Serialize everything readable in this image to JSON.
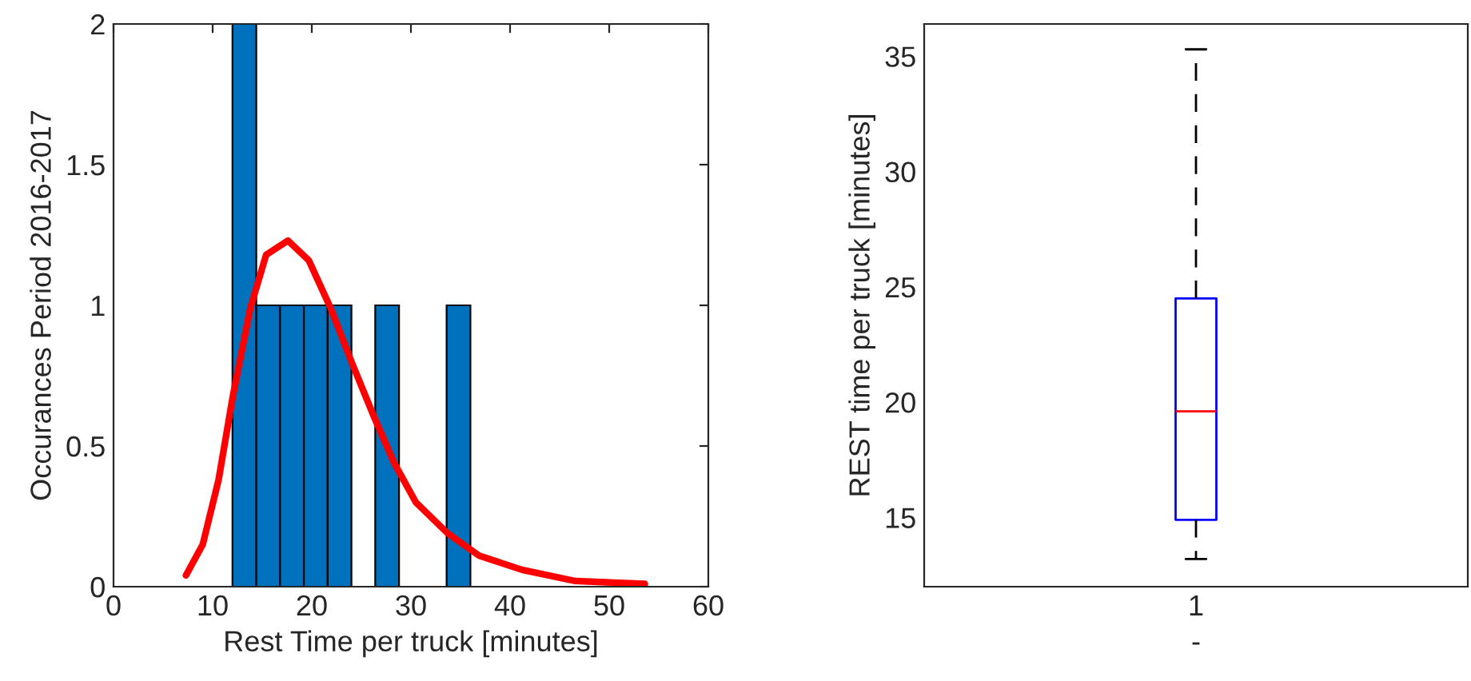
{
  "chart_data": [
    {
      "type": "histogram",
      "xlabel": "Rest Time per truck [minutes]",
      "ylabel": "Occurances Period 2016-2017",
      "bins": [
        12,
        14.4,
        16.8,
        19.2,
        21.6,
        24,
        26.4,
        28.8,
        31.2,
        33.6,
        36
      ],
      "values": [
        2,
        1,
        1,
        1,
        1,
        0,
        1,
        0,
        0,
        1
      ],
      "color": "#0072bd",
      "series": [
        {
          "type": "line",
          "color": "#ff0000",
          "x": [
            7.3,
            9,
            10.6,
            12.05,
            13.8,
            15.4,
            17.6,
            19.7,
            21.9,
            24,
            26.2,
            28.3,
            30.5,
            33.7,
            36.9,
            41.2,
            46.6,
            53.6
          ],
          "values": [
            0.04,
            0.15,
            0.38,
            0.68,
            0.99,
            1.18,
            1.23,
            1.16,
            0.99,
            0.8,
            0.61,
            0.44,
            0.3,
            0.19,
            0.11,
            0.06,
            0.02,
            0.01
          ]
        }
      ],
      "xlim": [
        0,
        60
      ],
      "xticks": [
        0,
        10,
        20,
        30,
        40,
        50,
        60
      ],
      "ylim": [
        0,
        2
      ],
      "yticks": [
        0,
        0.5,
        1,
        1.5,
        2
      ],
      "grid": false
    },
    {
      "type": "box",
      "xlabel": "-",
      "ylabel": "REST time per truck [minutes]",
      "categories": [
        "1"
      ],
      "color": "#0000ff",
      "boxes": [
        {
          "low": 13.2,
          "q1": 14.9,
          "median": 19.6,
          "q3": 24.5,
          "high": 35.3
        }
      ],
      "ylim": [
        12,
        36.4
      ],
      "yticks": [
        15,
        20,
        25,
        30,
        35
      ],
      "grid": false,
      "line_style": "dashed"
    }
  ]
}
